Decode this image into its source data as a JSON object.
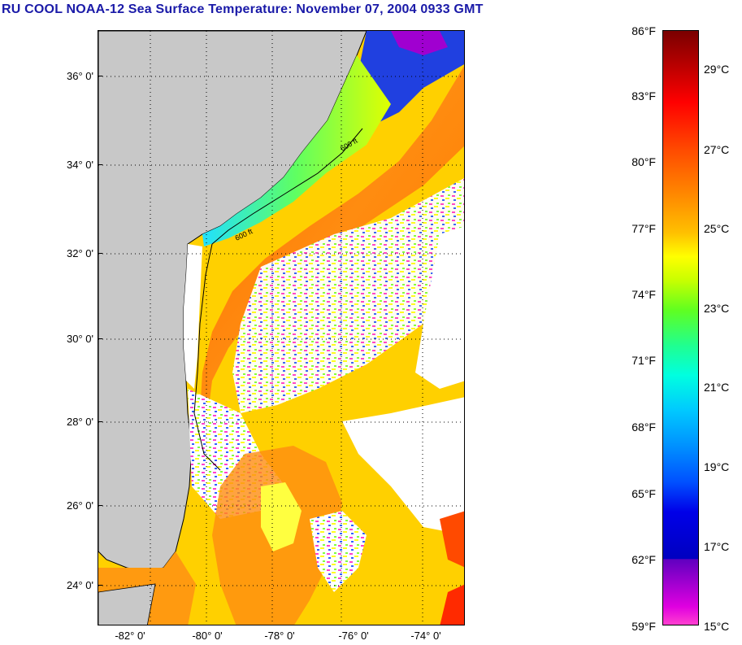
{
  "title": "RU COOL  NOAA-12  Sea Surface Temperature:  November 07, 2004 0933 GMT",
  "map": {
    "lat_labels": [
      "36° 0'",
      "34° 0'",
      "32° 0'",
      "30° 0'",
      "28° 0'",
      "26° 0'",
      "24° 0'"
    ],
    "lon_labels": [
      "-82° 0'",
      "-80° 0'",
      "-78° 0'",
      "-76° 0'",
      "-74° 0'"
    ],
    "contour_label": "600 ft",
    "colors": {
      "land": "#c8c8c8",
      "cloud": "#ffffff",
      "grid": "#000000"
    }
  },
  "colorbar": {
    "fahrenheit": [
      "86°F",
      "83°F",
      "80°F",
      "77°F",
      "74°F",
      "71°F",
      "68°F",
      "65°F",
      "62°F",
      "59°F"
    ],
    "celsius": [
      "29°C",
      "27°C",
      "25°C",
      "23°C",
      "21°C",
      "19°C",
      "17°C",
      "15°C"
    ]
  }
}
